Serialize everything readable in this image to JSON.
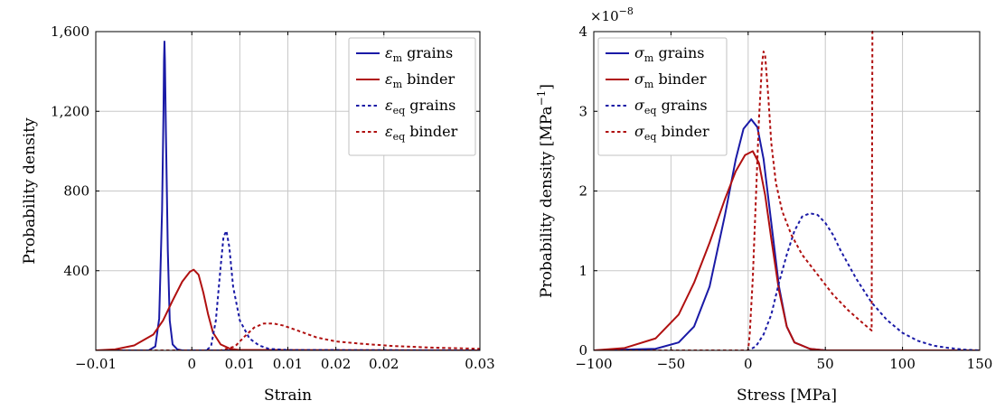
{
  "chart_data": [
    {
      "type": "line",
      "xlabel": "Strain",
      "ylabel": "Probability density",
      "xlim": [
        -0.01,
        0.03
      ],
      "ylim": [
        0,
        1600
      ],
      "x_ticks": [
        -0.01,
        0,
        0.01,
        0.02,
        0.03
      ],
      "x_tick_labels": [
        "−0.01",
        "0",
        "0.01",
        "0.01",
        "0.02",
        "0.02",
        "0.03"
      ],
      "x_tick_positions": [
        -0.01,
        0,
        0.005,
        0.01,
        0.015,
        0.02,
        0.03
      ],
      "y_ticks": [
        400,
        800,
        1200,
        1600
      ],
      "y_tick_labels": [
        "400",
        "800",
        "1,200",
        "1,600"
      ],
      "grid": true,
      "legend_position": "top-right",
      "series": [
        {
          "name": "ε_m grains",
          "legend_main": "ε",
          "legend_sub": "m",
          "legend_suffix": " grains",
          "color": "#1a1aa6",
          "dash": "solid",
          "points": [
            [
              -0.01,
              0
            ],
            [
              -0.0045,
              0
            ],
            [
              -0.0038,
              20
            ],
            [
              -0.0034,
              160
            ],
            [
              -0.0031,
              700
            ],
            [
              -0.00295,
              1200
            ],
            [
              -0.0029,
              1450
            ],
            [
              -0.00285,
              1550
            ],
            [
              -0.0028,
              1450
            ],
            [
              -0.0027,
              1100
            ],
            [
              -0.0025,
              500
            ],
            [
              -0.0023,
              150
            ],
            [
              -0.002,
              30
            ],
            [
              -0.0015,
              5
            ],
            [
              -0.001,
              0
            ],
            [
              0.03,
              0
            ]
          ]
        },
        {
          "name": "ε_m binder",
          "legend_main": "ε",
          "legend_sub": "m",
          "legend_suffix": " binder",
          "color": "#b01010",
          "dash": "solid",
          "points": [
            [
              -0.01,
              0
            ],
            [
              -0.008,
              5
            ],
            [
              -0.006,
              25
            ],
            [
              -0.004,
              80
            ],
            [
              -0.003,
              150
            ],
            [
              -0.002,
              250
            ],
            [
              -0.001,
              345
            ],
            [
              -0.0002,
              395
            ],
            [
              0.0002,
              405
            ],
            [
              0.0007,
              380
            ],
            [
              0.0012,
              290
            ],
            [
              0.0017,
              180
            ],
            [
              0.0022,
              90
            ],
            [
              0.003,
              30
            ],
            [
              0.004,
              8
            ],
            [
              0.005,
              2
            ],
            [
              0.03,
              0
            ]
          ]
        },
        {
          "name": "ε_eq grains",
          "legend_main": "ε",
          "legend_sub": "eq",
          "legend_suffix": " grains",
          "color": "#1a1aa6",
          "dash": "dotted",
          "points": [
            [
              -0.01,
              0
            ],
            [
              0.0015,
              0
            ],
            [
              0.002,
              20
            ],
            [
              0.0025,
              150
            ],
            [
              0.003,
              420
            ],
            [
              0.0033,
              570
            ],
            [
              0.0036,
              600
            ],
            [
              0.0039,
              520
            ],
            [
              0.0043,
              320
            ],
            [
              0.005,
              150
            ],
            [
              0.006,
              60
            ],
            [
              0.007,
              25
            ],
            [
              0.008,
              8
            ],
            [
              0.01,
              2
            ],
            [
              0.03,
              0
            ]
          ]
        },
        {
          "name": "ε_eq binder",
          "legend_main": "ε",
          "legend_sub": "eq",
          "legend_suffix": " binder",
          "color": "#b01010",
          "dash": "dotted",
          "points": [
            [
              -0.01,
              0
            ],
            [
              0.003,
              0
            ],
            [
              0.0045,
              20
            ],
            [
              0.0055,
              70
            ],
            [
              0.0065,
              115
            ],
            [
              0.0075,
              135
            ],
            [
              0.0085,
              135
            ],
            [
              0.0095,
              125
            ],
            [
              0.011,
              100
            ],
            [
              0.013,
              65
            ],
            [
              0.015,
              45
            ],
            [
              0.018,
              32
            ],
            [
              0.021,
              22
            ],
            [
              0.025,
              14
            ],
            [
              0.03,
              8
            ]
          ]
        }
      ]
    },
    {
      "type": "line",
      "xlabel": "Stress [MPa]",
      "ylabel": "Probability density [MPa",
      "ylabel_sup": "−1",
      "ylabel_end": "]",
      "y_scale_label": "×10",
      "y_scale_exp": "−8",
      "xlim": [
        -100,
        150
      ],
      "ylim": [
        0,
        4
      ],
      "x_ticks": [
        -100,
        -50,
        0,
        50,
        100,
        150
      ],
      "x_tick_labels": [
        "−100",
        "−50",
        "0",
        "50",
        "100",
        "150"
      ],
      "y_ticks": [
        0,
        1,
        2,
        3,
        4
      ],
      "y_tick_labels": [
        "0",
        "1",
        "2",
        "3",
        "4"
      ],
      "grid": true,
      "legend_position": "top-left",
      "series": [
        {
          "name": "σ_m grains",
          "legend_main": "σ",
          "legend_sub": "m",
          "legend_suffix": " grains",
          "color": "#1a1aa6",
          "dash": "solid",
          "points": [
            [
              -100,
              0
            ],
            [
              -60,
              0.02
            ],
            [
              -45,
              0.1
            ],
            [
              -35,
              0.3
            ],
            [
              -25,
              0.8
            ],
            [
              -15,
              1.7
            ],
            [
              -8,
              2.4
            ],
            [
              -3,
              2.78
            ],
            [
              2,
              2.9
            ],
            [
              6,
              2.8
            ],
            [
              10,
              2.4
            ],
            [
              15,
              1.6
            ],
            [
              20,
              0.8
            ],
            [
              25,
              0.3
            ],
            [
              30,
              0.1
            ],
            [
              40,
              0.02
            ],
            [
              50,
              0
            ],
            [
              150,
              0
            ]
          ]
        },
        {
          "name": "σ_m binder",
          "legend_main": "σ",
          "legend_sub": "m",
          "legend_suffix": " binder",
          "color": "#b01010",
          "dash": "solid",
          "points": [
            [
              -100,
              0
            ],
            [
              -80,
              0.03
            ],
            [
              -60,
              0.15
            ],
            [
              -45,
              0.45
            ],
            [
              -35,
              0.85
            ],
            [
              -25,
              1.35
            ],
            [
              -15,
              1.9
            ],
            [
              -8,
              2.25
            ],
            [
              -2,
              2.45
            ],
            [
              3,
              2.5
            ],
            [
              7,
              2.35
            ],
            [
              11,
              1.95
            ],
            [
              15,
              1.4
            ],
            [
              20,
              0.75
            ],
            [
              25,
              0.3
            ],
            [
              30,
              0.1
            ],
            [
              40,
              0.02
            ],
            [
              50,
              0
            ],
            [
              150,
              0
            ]
          ]
        },
        {
          "name": "σ_eq grains",
          "legend_main": "σ",
          "legend_sub": "eq",
          "legend_suffix": " grains",
          "color": "#1a1aa6",
          "dash": "dotted",
          "points": [
            [
              -100,
              0
            ],
            [
              0,
              0
            ],
            [
              5,
              0.05
            ],
            [
              10,
              0.2
            ],
            [
              15,
              0.45
            ],
            [
              20,
              0.85
            ],
            [
              25,
              1.2
            ],
            [
              30,
              1.5
            ],
            [
              35,
              1.68
            ],
            [
              40,
              1.72
            ],
            [
              45,
              1.7
            ],
            [
              50,
              1.6
            ],
            [
              55,
              1.45
            ],
            [
              60,
              1.25
            ],
            [
              70,
              0.9
            ],
            [
              80,
              0.6
            ],
            [
              90,
              0.38
            ],
            [
              100,
              0.22
            ],
            [
              110,
              0.12
            ],
            [
              120,
              0.06
            ],
            [
              130,
              0.03
            ],
            [
              140,
              0.01
            ],
            [
              150,
              0
            ]
          ]
        },
        {
          "name": "σ_eq binder",
          "legend_main": "σ",
          "legend_sub": "eq",
          "legend_suffix": " binder",
          "color": "#b01010",
          "dash": "dotted",
          "points": [
            [
              -100,
              0
            ],
            [
              0,
              0
            ],
            [
              1,
              0.2
            ],
            [
              3,
              0.9
            ],
            [
              5,
              1.9
            ],
            [
              7,
              2.9
            ],
            [
              9,
              3.6
            ],
            [
              10,
              3.75
            ],
            [
              11,
              3.7
            ],
            [
              13,
              3.2
            ],
            [
              15,
              2.6
            ],
            [
              18,
              2.1
            ],
            [
              22,
              1.75
            ],
            [
              28,
              1.45
            ],
            [
              35,
              1.2
            ],
            [
              45,
              0.95
            ],
            [
              55,
              0.7
            ],
            [
              65,
              0.5
            ],
            [
              75,
              0.33
            ],
            [
              80,
              0.25
            ],
            [
              80.5,
              4
            ],
            [
              81,
              4
            ]
          ]
        }
      ]
    }
  ]
}
